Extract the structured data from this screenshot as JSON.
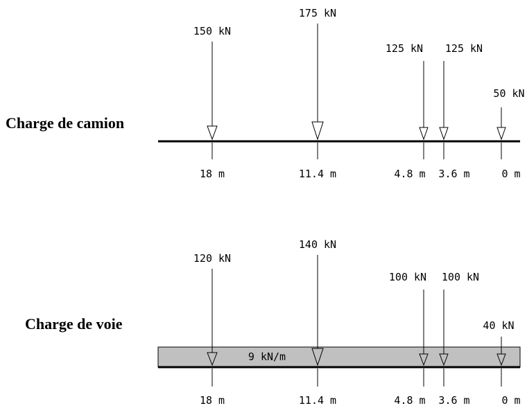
{
  "truck": {
    "title": "Charge de camion",
    "loads": [
      {
        "label": "150 kN",
        "position_label": "18 m",
        "position_m": 18
      },
      {
        "label": "175 kN",
        "position_label": "11.4 m",
        "position_m": 11.4
      },
      {
        "label": "125 kN",
        "position_label": "4.8 m",
        "position_m": 4.8
      },
      {
        "label": "125 kN",
        "position_label": "3.6 m",
        "position_m": 3.6
      },
      {
        "label": "50 kN",
        "position_label": "0 m",
        "position_m": 0
      }
    ]
  },
  "lane": {
    "title": "Charge de voie",
    "distributed_label": "9 kN/m",
    "band_color": "#c0c0c0",
    "loads": [
      {
        "label": "120 kN",
        "position_label": "18 m",
        "position_m": 18
      },
      {
        "label": "140 kN",
        "position_label": "11.4 m",
        "position_m": 11.4
      },
      {
        "label": "100 kN",
        "position_label": "4.8 m",
        "position_m": 4.8
      },
      {
        "label": "100 kN",
        "position_label": "3.6 m",
        "position_m": 3.6
      },
      {
        "label": "40 kN",
        "position_label": "0 m",
        "position_m": 0
      }
    ]
  }
}
